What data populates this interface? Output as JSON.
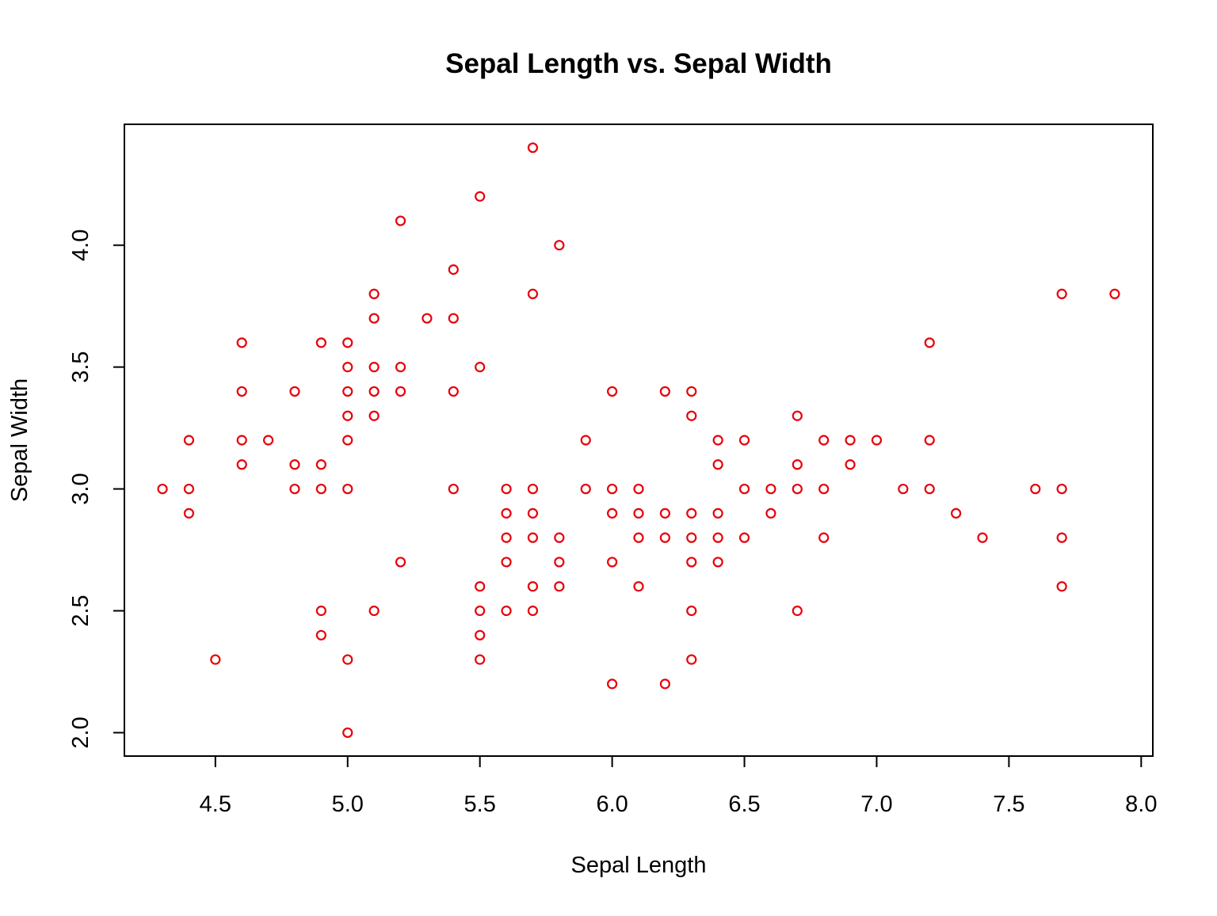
{
  "chart_data": {
    "type": "scatter",
    "title": "Sepal Length vs. Sepal Width",
    "xlabel": "Sepal Length",
    "ylabel": "Sepal Width",
    "xlim": [
      4.3,
      7.9
    ],
    "ylim": [
      2.0,
      4.4
    ],
    "x_ticks": [
      4.5,
      5.0,
      5.5,
      6.0,
      6.5,
      7.0,
      7.5,
      8.0
    ],
    "x_tick_labels": [
      "4.5",
      "5.0",
      "5.5",
      "6.0",
      "6.5",
      "7.0",
      "7.5",
      "8.0"
    ],
    "y_ticks": [
      2.0,
      2.5,
      3.0,
      3.5,
      4.0
    ],
    "y_tick_labels": [
      "2.0",
      "2.5",
      "3.0",
      "3.5",
      "4.0"
    ],
    "grid": false,
    "marker": "open-circle",
    "point_color": "#e8000b",
    "points": [
      [
        4.3,
        3.0
      ],
      [
        4.4,
        3.2
      ],
      [
        4.4,
        3.0
      ],
      [
        4.4,
        2.9
      ],
      [
        4.5,
        2.3
      ],
      [
        4.6,
        3.6
      ],
      [
        4.6,
        3.4
      ],
      [
        4.6,
        3.2
      ],
      [
        4.6,
        3.1
      ],
      [
        4.7,
        3.2
      ],
      [
        4.8,
        3.4
      ],
      [
        4.8,
        3.1
      ],
      [
        4.8,
        3.0
      ],
      [
        4.9,
        3.6
      ],
      [
        4.9,
        3.1
      ],
      [
        4.9,
        3.0
      ],
      [
        4.9,
        2.5
      ],
      [
        4.9,
        2.4
      ],
      [
        5.0,
        3.6
      ],
      [
        5.0,
        3.5
      ],
      [
        5.0,
        3.4
      ],
      [
        5.0,
        3.3
      ],
      [
        5.0,
        3.2
      ],
      [
        5.0,
        3.0
      ],
      [
        5.0,
        2.3
      ],
      [
        5.0,
        2.0
      ],
      [
        5.1,
        3.8
      ],
      [
        5.1,
        3.7
      ],
      [
        5.1,
        3.5
      ],
      [
        5.1,
        3.4
      ],
      [
        5.1,
        3.3
      ],
      [
        5.1,
        2.5
      ],
      [
        5.2,
        4.1
      ],
      [
        5.2,
        3.5
      ],
      [
        5.2,
        3.4
      ],
      [
        5.2,
        2.7
      ],
      [
        5.3,
        3.7
      ],
      [
        5.4,
        3.9
      ],
      [
        5.4,
        3.7
      ],
      [
        5.4,
        3.4
      ],
      [
        5.4,
        3.0
      ],
      [
        5.5,
        4.2
      ],
      [
        5.5,
        3.5
      ],
      [
        5.5,
        2.6
      ],
      [
        5.5,
        2.5
      ],
      [
        5.5,
        2.4
      ],
      [
        5.5,
        2.3
      ],
      [
        5.6,
        3.0
      ],
      [
        5.6,
        2.9
      ],
      [
        5.6,
        2.8
      ],
      [
        5.6,
        2.7
      ],
      [
        5.6,
        2.5
      ],
      [
        5.7,
        4.4
      ],
      [
        5.7,
        3.8
      ],
      [
        5.7,
        3.0
      ],
      [
        5.7,
        2.9
      ],
      [
        5.7,
        2.8
      ],
      [
        5.7,
        2.6
      ],
      [
        5.7,
        2.5
      ],
      [
        5.8,
        4.0
      ],
      [
        5.8,
        2.8
      ],
      [
        5.8,
        2.7
      ],
      [
        5.8,
        2.6
      ],
      [
        5.9,
        3.2
      ],
      [
        5.9,
        3.0
      ],
      [
        6.0,
        3.4
      ],
      [
        6.0,
        3.0
      ],
      [
        6.0,
        2.9
      ],
      [
        6.0,
        2.7
      ],
      [
        6.0,
        2.2
      ],
      [
        6.1,
        3.0
      ],
      [
        6.1,
        2.9
      ],
      [
        6.1,
        2.8
      ],
      [
        6.1,
        2.6
      ],
      [
        6.2,
        3.4
      ],
      [
        6.2,
        2.9
      ],
      [
        6.2,
        2.8
      ],
      [
        6.2,
        2.2
      ],
      [
        6.3,
        3.4
      ],
      [
        6.3,
        3.3
      ],
      [
        6.3,
        2.9
      ],
      [
        6.3,
        2.8
      ],
      [
        6.3,
        2.7
      ],
      [
        6.3,
        2.5
      ],
      [
        6.3,
        2.3
      ],
      [
        6.4,
        3.2
      ],
      [
        6.4,
        3.1
      ],
      [
        6.4,
        2.9
      ],
      [
        6.4,
        2.8
      ],
      [
        6.4,
        2.7
      ],
      [
        6.5,
        3.2
      ],
      [
        6.5,
        3.0
      ],
      [
        6.5,
        2.8
      ],
      [
        6.6,
        3.0
      ],
      [
        6.6,
        2.9
      ],
      [
        6.7,
        3.3
      ],
      [
        6.7,
        3.1
      ],
      [
        6.7,
        3.0
      ],
      [
        6.7,
        2.5
      ],
      [
        6.8,
        3.2
      ],
      [
        6.8,
        3.0
      ],
      [
        6.8,
        2.8
      ],
      [
        6.9,
        3.2
      ],
      [
        6.9,
        3.1
      ],
      [
        7.0,
        3.2
      ],
      [
        7.1,
        3.0
      ],
      [
        7.2,
        3.6
      ],
      [
        7.2,
        3.2
      ],
      [
        7.2,
        3.0
      ],
      [
        7.3,
        2.9
      ],
      [
        7.4,
        2.8
      ],
      [
        7.6,
        3.0
      ],
      [
        7.7,
        3.8
      ],
      [
        7.7,
        3.0
      ],
      [
        7.7,
        2.8
      ],
      [
        7.7,
        2.6
      ],
      [
        7.9,
        3.8
      ]
    ]
  }
}
